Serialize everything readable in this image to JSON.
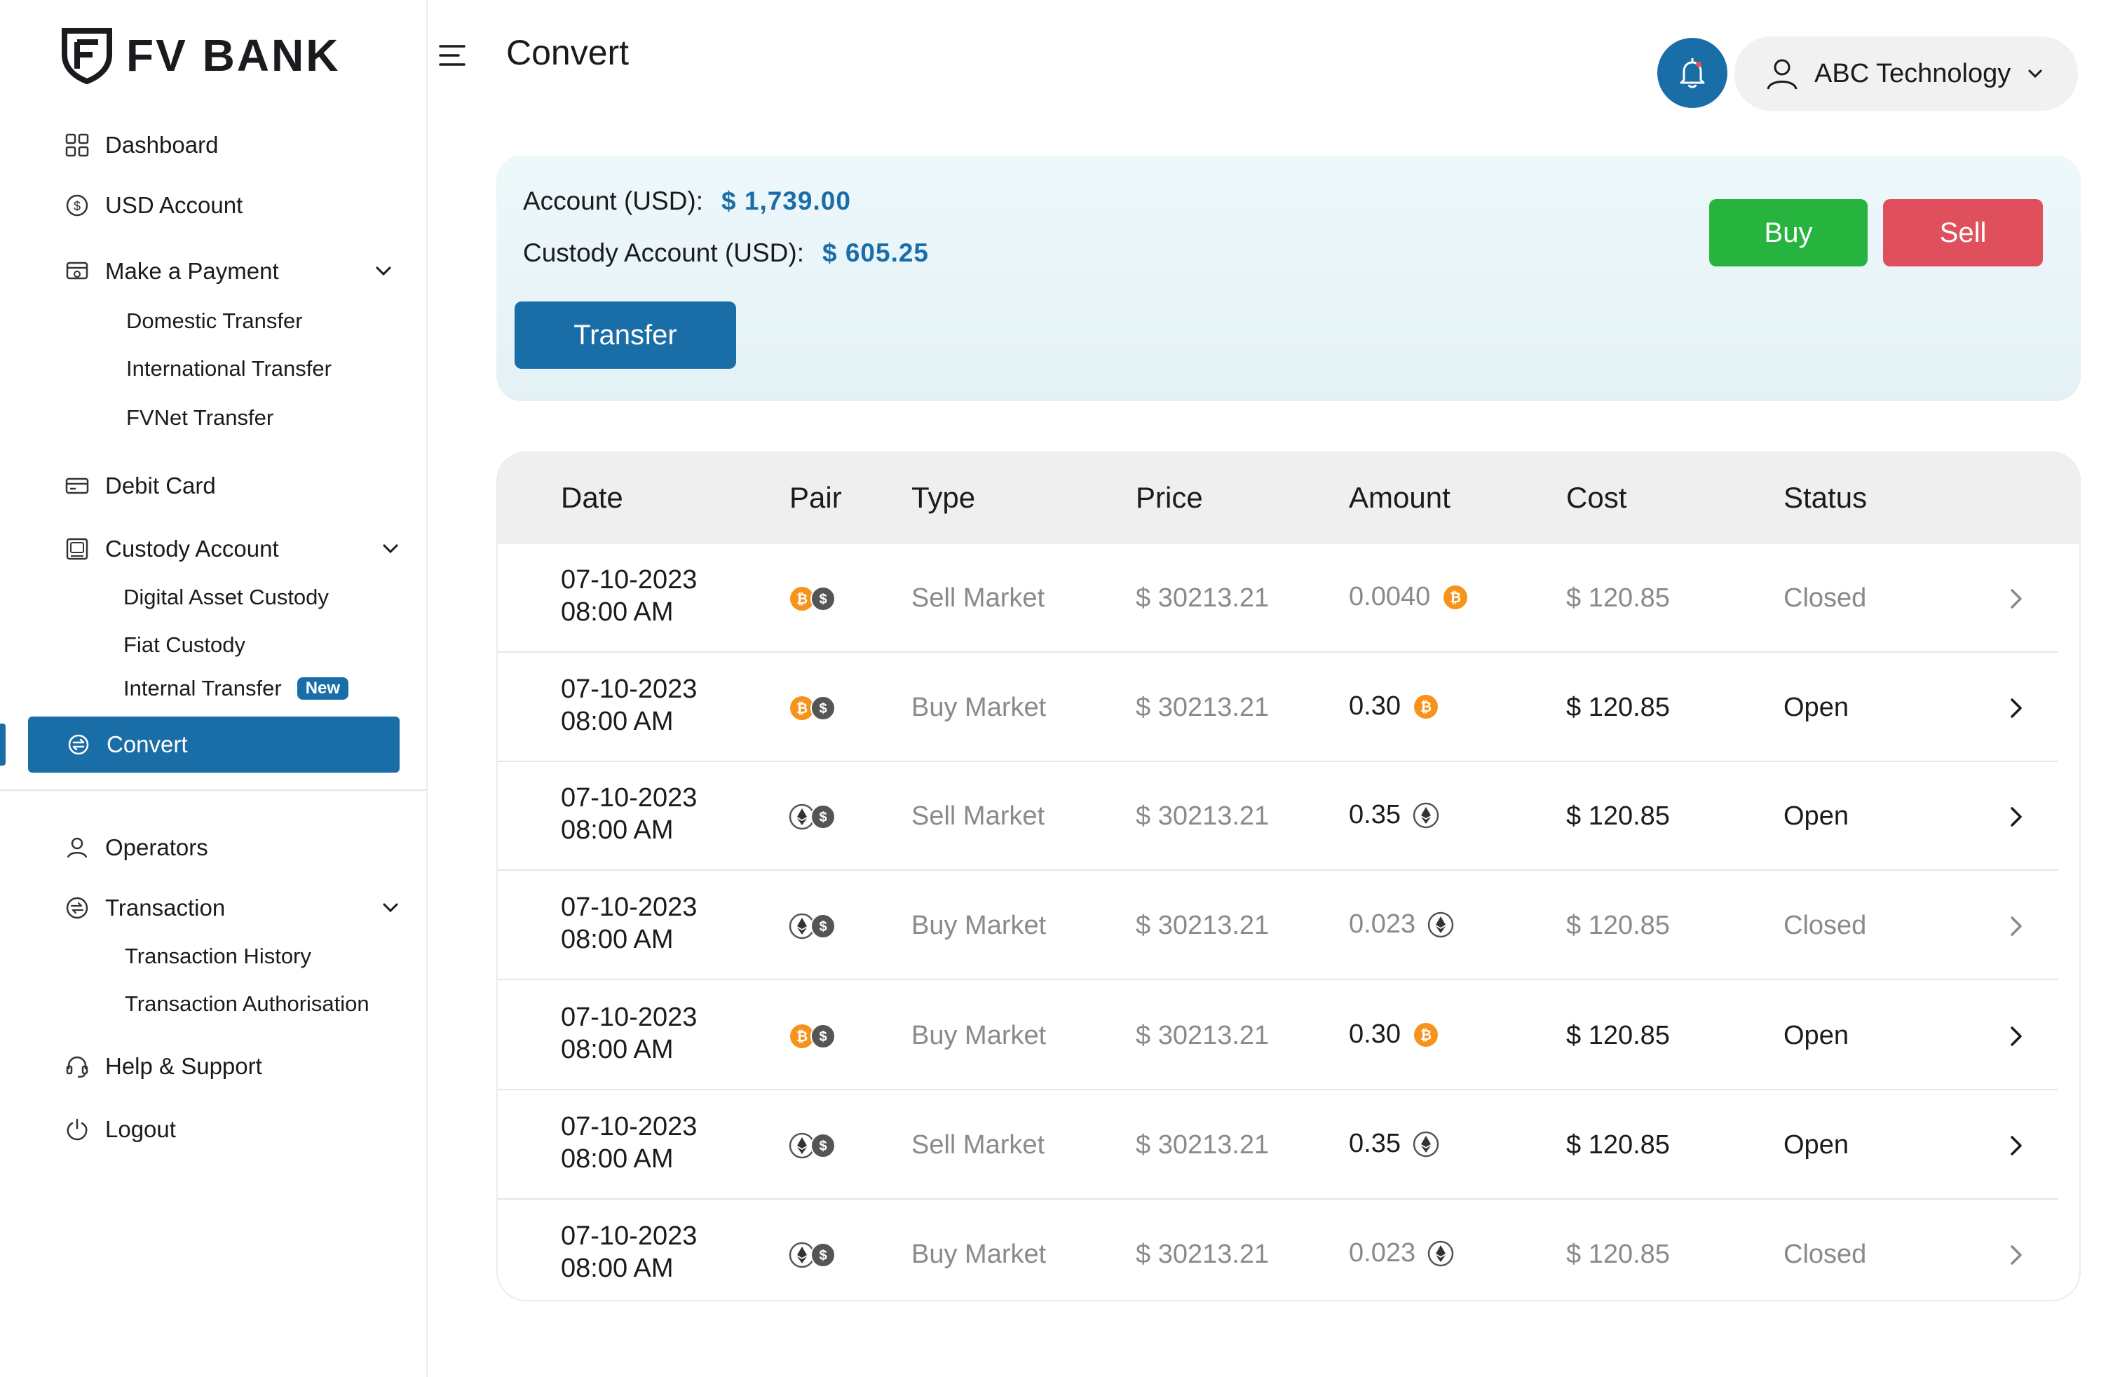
{
  "brand": {
    "name": "FV BANK"
  },
  "sidebar": {
    "dashboard": "Dashboard",
    "usd_account": "USD Account",
    "make_payment": "Make a Payment",
    "payment_sub": [
      "Domestic Transfer",
      "International Transfer",
      "FVNet Transfer"
    ],
    "debit_card": "Debit Card",
    "custody_account": "Custody Account",
    "custody_sub": [
      "Digital Asset Custody",
      "Fiat Custody",
      "Internal Transfer"
    ],
    "new_badge": "New",
    "convert": "Convert",
    "operators": "Operators",
    "transaction": "Transaction",
    "transaction_sub": [
      "Transaction History",
      "Transaction Authorisation"
    ],
    "help": "Help & Support",
    "logout": "Logout"
  },
  "header": {
    "title": "Convert",
    "user": "ABC Technology"
  },
  "summary": {
    "account_label": "Account (USD):",
    "account_value": "$ 1,739.00",
    "custody_label": "Custody Account (USD):",
    "custody_value": "$ 605.25",
    "transfer_label": "Transfer",
    "buy_label": "Buy",
    "sell_label": "Sell"
  },
  "table": {
    "headers": [
      "Date",
      "Pair",
      "Type",
      "Price",
      "Amount",
      "Cost",
      "Status"
    ],
    "rows": [
      {
        "date": "07-10-2023",
        "time": "08:00 AM",
        "pair": "btc-usd",
        "type": "Sell Market",
        "price": "$ 30213.21",
        "amount": "0.0040",
        "coin": "btc",
        "cost": "$ 120.85",
        "status": "Closed"
      },
      {
        "date": "07-10-2023",
        "time": "08:00 AM",
        "pair": "btc-usd",
        "type": "Buy Market",
        "price": "$ 30213.21",
        "amount": "0.30",
        "coin": "btc",
        "cost": "$ 120.85",
        "status": "Open"
      },
      {
        "date": "07-10-2023",
        "time": "08:00 AM",
        "pair": "eth-usd",
        "type": "Sell Market",
        "price": "$ 30213.21",
        "amount": "0.35",
        "coin": "eth",
        "cost": "$ 120.85",
        "status": "Open"
      },
      {
        "date": "07-10-2023",
        "time": "08:00 AM",
        "pair": "eth-usd",
        "type": "Buy Market",
        "price": "$ 30213.21",
        "amount": "0.023",
        "coin": "eth",
        "cost": "$ 120.85",
        "status": "Closed"
      },
      {
        "date": "07-10-2023",
        "time": "08:00 AM",
        "pair": "btc-usd",
        "type": "Buy Market",
        "price": "$ 30213.21",
        "amount": "0.30",
        "coin": "btc",
        "cost": "$ 120.85",
        "status": "Open"
      },
      {
        "date": "07-10-2023",
        "time": "08:00 AM",
        "pair": "eth-usd",
        "type": "Sell Market",
        "price": "$ 30213.21",
        "amount": "0.35",
        "coin": "eth",
        "cost": "$ 120.85",
        "status": "Open"
      },
      {
        "date": "07-10-2023",
        "time": "08:00 AM",
        "pair": "eth-usd",
        "type": "Buy Market",
        "price": "$ 30213.21",
        "amount": "0.023",
        "coin": "eth",
        "cost": "$ 120.85",
        "status": "Closed"
      }
    ]
  },
  "colors": {
    "primary": "#1a6ea8",
    "buy": "#27b43e",
    "sell": "#e0505c",
    "btc": "#f7931a"
  }
}
